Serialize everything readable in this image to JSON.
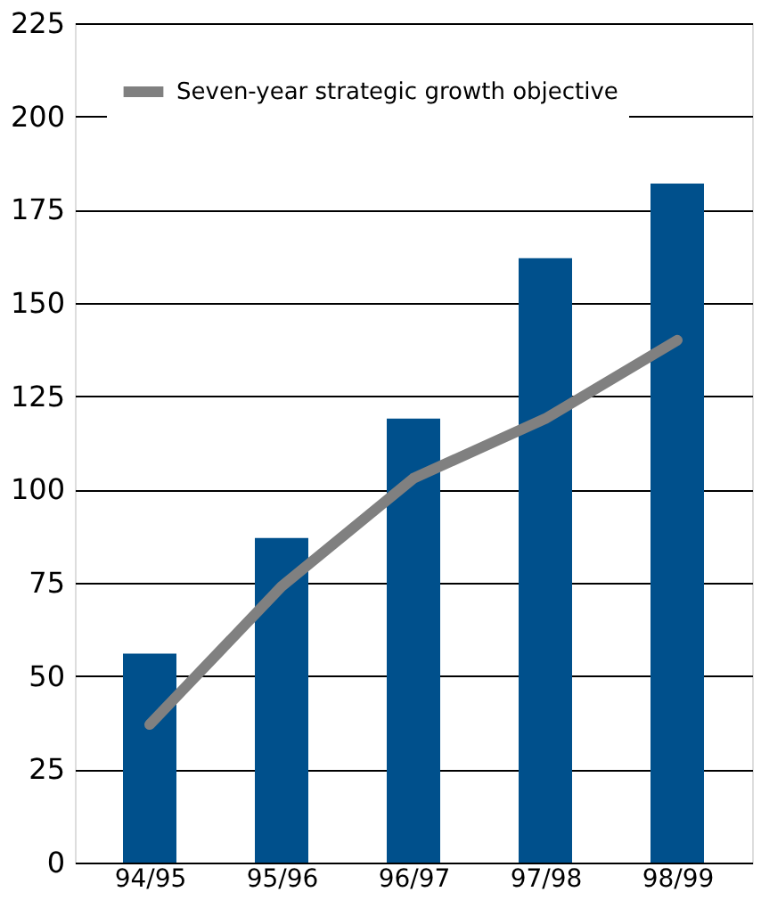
{
  "chart_data": {
    "type": "bar",
    "categories": [
      "94/95",
      "95/96",
      "96/97",
      "97/98",
      "98/99"
    ],
    "series": [
      {
        "color": "#00508c",
        "values": [
          56,
          87,
          119,
          162,
          182
        ]
      },
      {
        "type": "line",
        "name": "Seven-year strategic growth objective",
        "color": "#808080",
        "values": [
          37,
          74,
          103,
          119,
          140
        ]
      }
    ],
    "ylim": [
      0,
      225
    ],
    "yticks": [
      0,
      25,
      50,
      75,
      100,
      125,
      150,
      175,
      200,
      225
    ],
    "grid": "y",
    "legend": "top left",
    "marker": "none",
    "line_style": "solid"
  }
}
